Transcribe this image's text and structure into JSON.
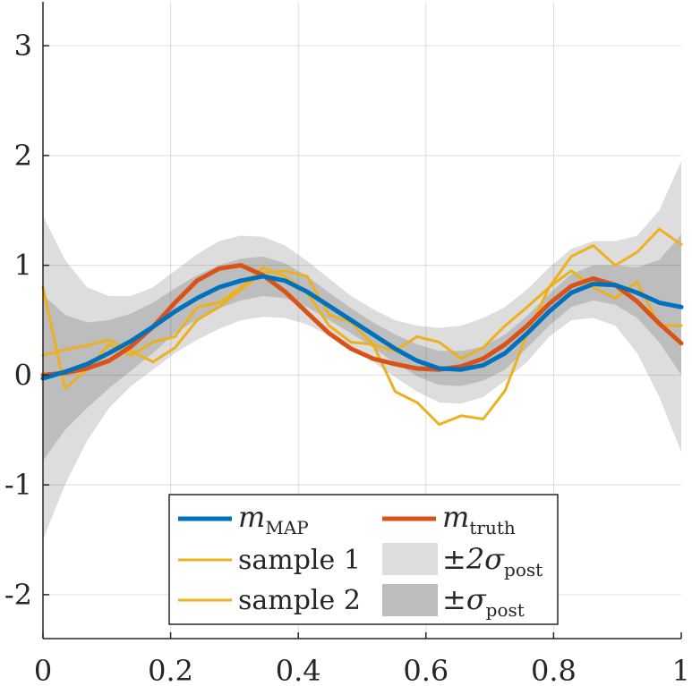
{
  "chart_data": {
    "type": "line",
    "title": "",
    "xlabel": "",
    "ylabel": "",
    "xlim": [
      0,
      1
    ],
    "ylim": [
      -2.4,
      3.4
    ],
    "grid": true,
    "x_ticks": [
      0,
      0.2,
      0.4,
      0.6,
      0.8,
      1
    ],
    "x_tick_labels": [
      "0",
      "0.2",
      "0.4",
      "0.6",
      "0.8",
      "1"
    ],
    "y_ticks": [
      -2,
      -1,
      0,
      1,
      2,
      3
    ],
    "y_tick_labels": [
      "-2",
      "-1",
      "0",
      "1",
      "2",
      "3"
    ],
    "x": [
      0,
      0.0345,
      0.069,
      0.1034,
      0.1379,
      0.1724,
      0.2069,
      0.2414,
      0.2759,
      0.3103,
      0.3448,
      0.3793,
      0.4138,
      0.4483,
      0.4828,
      0.5172,
      0.5517,
      0.5862,
      0.6207,
      0.6552,
      0.6897,
      0.7241,
      0.7586,
      0.7931,
      0.8276,
      0.8621,
      0.8966,
      0.931,
      0.9655,
      1
    ],
    "colors": {
      "map": "#0072BD",
      "truth": "#D95319",
      "sample": "#EDB120",
      "band2": "#DDDDDD",
      "band1": "#BDBDBD"
    },
    "series": [
      {
        "name": "m_MAP",
        "values": [
          -0.03,
          0.03,
          0.1,
          0.2,
          0.31,
          0.44,
          0.58,
          0.7,
          0.8,
          0.86,
          0.9,
          0.86,
          0.76,
          0.63,
          0.5,
          0.37,
          0.24,
          0.13,
          0.06,
          0.05,
          0.09,
          0.2,
          0.38,
          0.58,
          0.75,
          0.83,
          0.82,
          0.75,
          0.66,
          0.62
        ]
      },
      {
        "name": "m_truth",
        "values": [
          0.0,
          0.02,
          0.06,
          0.13,
          0.26,
          0.44,
          0.66,
          0.86,
          0.97,
          1.0,
          0.91,
          0.76,
          0.57,
          0.38,
          0.24,
          0.15,
          0.1,
          0.06,
          0.05,
          0.08,
          0.15,
          0.28,
          0.45,
          0.65,
          0.81,
          0.88,
          0.82,
          0.67,
          0.47,
          0.29
        ]
      },
      {
        "name": "sample 1",
        "values": [
          0.18,
          0.23,
          0.27,
          0.32,
          0.22,
          0.12,
          0.25,
          0.5,
          0.62,
          0.78,
          0.93,
          0.95,
          0.9,
          0.55,
          0.48,
          0.28,
          0.22,
          0.35,
          0.3,
          0.15,
          0.25,
          0.45,
          0.62,
          0.8,
          1.08,
          1.18,
          1.0,
          1.12,
          1.33,
          1.19
        ]
      },
      {
        "name": "sample 2",
        "values": [
          0.8,
          -0.12,
          0.05,
          0.28,
          0.18,
          0.3,
          0.35,
          0.62,
          0.66,
          0.8,
          0.98,
          0.9,
          0.75,
          0.45,
          0.3,
          0.28,
          -0.15,
          -0.25,
          -0.45,
          -0.37,
          -0.4,
          -0.14,
          0.38,
          0.8,
          0.95,
          0.8,
          0.7,
          0.85,
          0.45,
          0.45
        ]
      }
    ],
    "band_2sigma": {
      "name": "±2σ_post",
      "upper": [
        1.45,
        1.05,
        0.8,
        0.72,
        0.72,
        0.8,
        0.95,
        1.1,
        1.22,
        1.27,
        1.26,
        1.18,
        1.04,
        0.88,
        0.72,
        0.6,
        0.5,
        0.45,
        0.43,
        0.45,
        0.52,
        0.62,
        0.78,
        0.98,
        1.15,
        1.22,
        1.22,
        1.27,
        1.5,
        1.95
      ],
      "lower": [
        -1.5,
        -1.0,
        -0.6,
        -0.3,
        -0.1,
        0.05,
        0.2,
        0.32,
        0.42,
        0.5,
        0.53,
        0.52,
        0.46,
        0.36,
        0.25,
        0.12,
        -0.02,
        -0.15,
        -0.25,
        -0.26,
        -0.2,
        -0.05,
        0.12,
        0.35,
        0.5,
        0.52,
        0.45,
        0.2,
        -0.2,
        -0.7
      ]
    },
    "band_1sigma": {
      "name": "±σ_post",
      "upper": [
        0.73,
        0.55,
        0.48,
        0.5,
        0.56,
        0.66,
        0.79,
        0.91,
        1.0,
        1.06,
        1.08,
        1.02,
        0.9,
        0.75,
        0.61,
        0.48,
        0.37,
        0.28,
        0.22,
        0.22,
        0.26,
        0.37,
        0.54,
        0.74,
        0.92,
        1.0,
        1.0,
        0.98,
        1.05,
        1.28
      ],
      "lower": [
        -0.78,
        -0.5,
        -0.3,
        -0.12,
        0.04,
        0.2,
        0.38,
        0.51,
        0.61,
        0.68,
        0.72,
        0.7,
        0.62,
        0.5,
        0.38,
        0.25,
        0.11,
        -0.01,
        -0.09,
        -0.1,
        -0.05,
        0.05,
        0.25,
        0.45,
        0.62,
        0.68,
        0.64,
        0.52,
        0.3,
        0.0
      ]
    },
    "legend": {
      "location": "bottom-center",
      "entries": [
        {
          "key": "map",
          "base": "m",
          "sub": "MAP"
        },
        {
          "key": "truth",
          "base": "m",
          "sub": "truth"
        },
        {
          "key": "sample1",
          "label": "sample 1"
        },
        {
          "key": "band2",
          "base": "±2σ",
          "sub": "post"
        },
        {
          "key": "sample2",
          "label": "sample 2"
        },
        {
          "key": "band1",
          "base": "±σ",
          "sub": "post"
        }
      ]
    }
  }
}
